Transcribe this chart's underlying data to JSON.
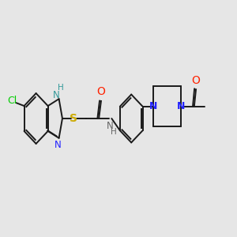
{
  "bg_color": "#e6e6e6",
  "line_color": "#1a1a1a",
  "cl_color": "#00cc00",
  "n_color": "#2222ff",
  "s_color": "#ccaa00",
  "o_color": "#ff2200",
  "nh_color": "#666666",
  "lw": 1.4,
  "xlim": [
    0,
    11
  ],
  "ylim": [
    1.5,
    7.5
  ]
}
